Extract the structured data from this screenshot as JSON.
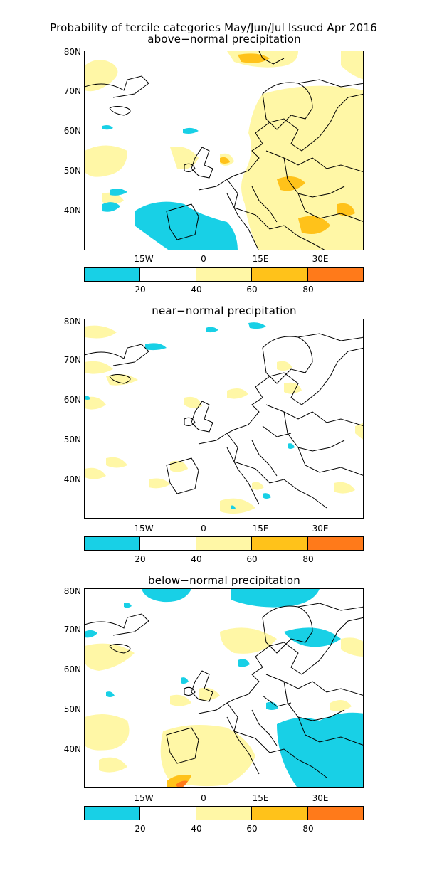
{
  "title": "Probability of tercile categories May/Jun/Jul Issued Apr 2016",
  "colors": {
    "cyan": "#18d0e6",
    "white": "#ffffff",
    "light_yellow": "#fff7a6",
    "gold": "#ffc21a",
    "orange": "#ff7a1a"
  },
  "axes": {
    "lat_labels": [
      "80N",
      "70N",
      "60N",
      "50N",
      "40N"
    ],
    "lon_labels": [
      "15W",
      "0",
      "15E",
      "30E"
    ]
  },
  "colorbar": {
    "labels": [
      "20",
      "40",
      "60",
      "80"
    ],
    "bins": [
      {
        "range": "<20",
        "color": "#18d0e6"
      },
      {
        "range": "20-40",
        "color": "#ffffff"
      },
      {
        "range": "40-60",
        "color": "#fff7a6"
      },
      {
        "range": "60-80",
        "color": "#ffc21a"
      },
      {
        "range": ">80",
        "color": "#ff7a1a"
      }
    ]
  },
  "panels": [
    {
      "title": "above−normal precipitation"
    },
    {
      "title": "near−normal precipitation"
    },
    {
      "title": "below−normal precipitation"
    }
  ]
}
